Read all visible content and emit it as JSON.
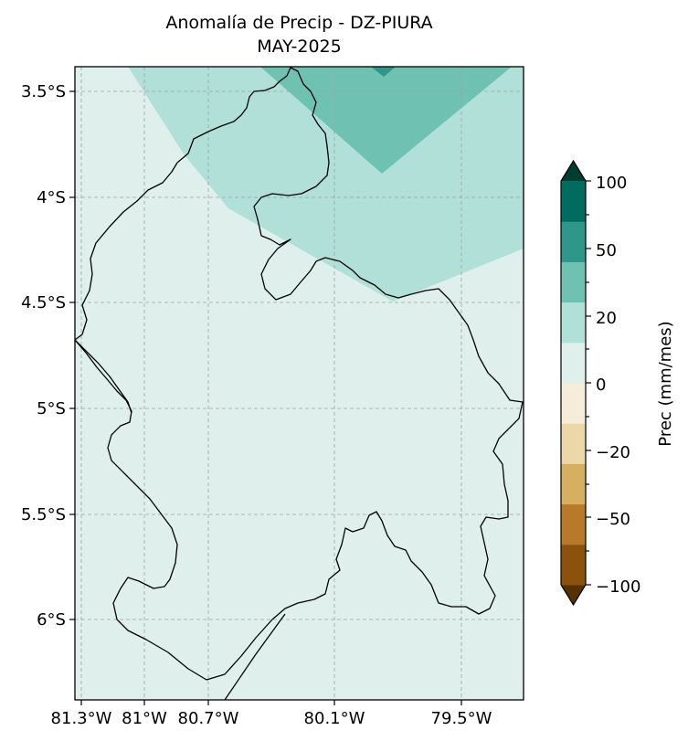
{
  "title": {
    "line1": "Anomalía de Precip - DZ-PIURA",
    "line2": "MAY-2025"
  },
  "map": {
    "lat_ticks": [
      "3.5°S",
      "4°S",
      "4.5°S",
      "5°S",
      "5.5°S",
      "6°S"
    ],
    "lon_ticks": [
      "81.3°W",
      "81°W",
      "80.7°W",
      "80.1°W",
      "79.5°W"
    ],
    "gridlines": true,
    "region": "Piura"
  },
  "colorbar": {
    "label": "Prec (mm/mes)",
    "tick_labels": [
      "100",
      "50",
      "20",
      "0",
      "−20",
      "−50",
      "−100"
    ],
    "colors_bottom_to_top": [
      "#543005",
      "#8c510a",
      "#b8792a",
      "#d6b060",
      "#ebd7a7",
      "#f5ecd9",
      "#dff0ec",
      "#b0e0d7",
      "#6fc1b2",
      "#2f968a",
      "#006b5e",
      "#003c30"
    ]
  },
  "colors": {
    "frame": "#000000",
    "grid": "#9aa7a4",
    "background_anomaly": "#dff0ec"
  }
}
